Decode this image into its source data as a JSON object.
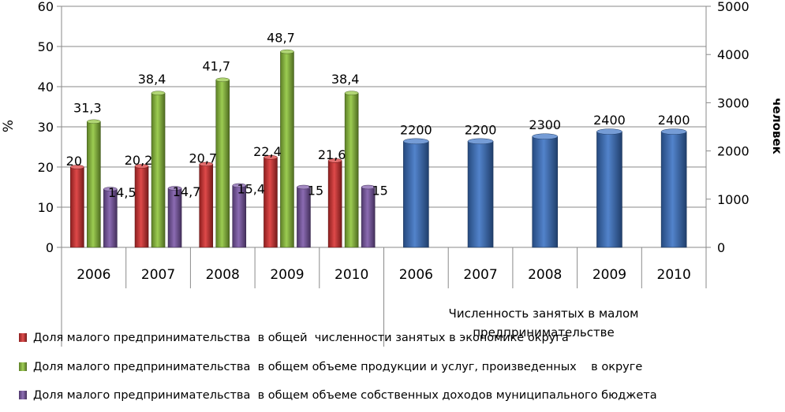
{
  "chart_data": {
    "type": "bar",
    "left_axis": {
      "label": "%",
      "min": 0,
      "max": 60,
      "step": 10,
      "ticks": [
        "0",
        "10",
        "20",
        "30",
        "40",
        "50",
        "60"
      ]
    },
    "right_axis": {
      "label": "человек",
      "min": 0,
      "max": 5000,
      "step": 1000,
      "ticks": [
        "0",
        "1000",
        "2000",
        "3000",
        "4000",
        "5000"
      ]
    },
    "categories": [
      "2006",
      "2007",
      "2008",
      "2009",
      "2010",
      "2006",
      "2007",
      "2008",
      "2009",
      "2010"
    ],
    "group_label": "Численность  занятых в малом предпринимательстве",
    "series": [
      {
        "name": "Доля малого предпринимательства  в общей  численности занятых в экономике округа",
        "axis": "left",
        "color": "#d93030",
        "values": [
          20,
          20.2,
          20.7,
          22.4,
          21.6,
          null,
          null,
          null,
          null,
          null
        ],
        "labels": [
          "20",
          "20,2",
          "20,7",
          "22,4",
          "21,6"
        ]
      },
      {
        "name": "Доля малого предпринимательства  в общем объеме продукции и услуг, произведенных    в округе",
        "axis": "left",
        "color": "#8fc53a",
        "values": [
          31.3,
          38.4,
          41.7,
          48.7,
          38.4,
          null,
          null,
          null,
          null,
          null
        ],
        "labels": [
          "31,3",
          "38,4",
          "41,7",
          "48,7",
          "38,4"
        ]
      },
      {
        "name": "Доля малого предпринимательства  в общем объеме собственных доходов муниципального бюджета",
        "axis": "left",
        "color": "#7b57a8",
        "values": [
          14.5,
          14.7,
          15.4,
          15,
          15,
          null,
          null,
          null,
          null,
          null
        ],
        "labels": [
          "14,5",
          "14,7",
          "15,4",
          "15",
          "15"
        ]
      },
      {
        "name": "Численность  занятых в малом предпринимательстве",
        "axis": "right",
        "color": "#3a72c4",
        "values": [
          null,
          null,
          null,
          null,
          null,
          2200,
          2200,
          2300,
          2400,
          2400
        ],
        "labels": [
          "2200",
          "2200",
          "2300",
          "2400",
          "2400"
        ]
      }
    ],
    "grid": true
  },
  "legend": {
    "items": [
      {
        "label": "Доля малого предпринимательства  в общей  численности занятых в экономике округа",
        "color": "#d93030"
      },
      {
        "label": "Доля малого предпринимательства  в общем объеме продукции и услуг, произведенных    в округе",
        "color": "#8fc53a"
      },
      {
        "label": "Доля малого предпринимательства  в общем объеме собственных доходов муниципального бюджета",
        "color": "#7b57a8"
      }
    ]
  }
}
